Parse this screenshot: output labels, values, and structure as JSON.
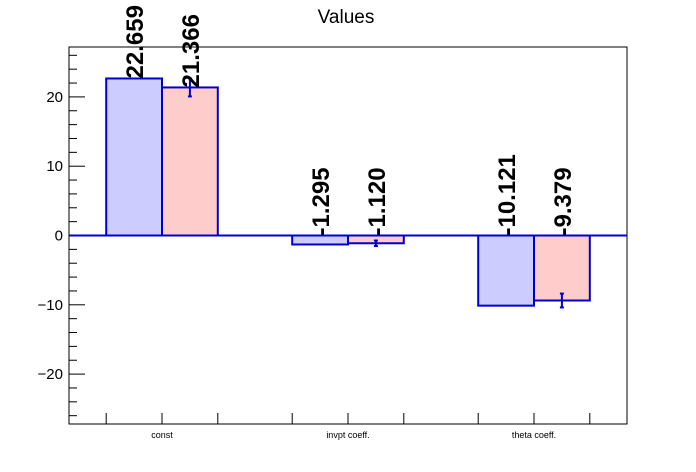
{
  "chart_data": {
    "type": "bar",
    "title": "Values",
    "categories": [
      "const",
      "invpt coeff.",
      "theta coeff."
    ],
    "series": [
      {
        "values": [
          22.659,
          -1.295,
          -10.121
        ],
        "color": "#ccccff",
        "edge": "#0000cc",
        "labels": [
          "22.659",
          "-1.295",
          "-10.121"
        ]
      },
      {
        "values": [
          21.366,
          -1.12,
          -9.379
        ],
        "errors": [
          1.3,
          0.4,
          1.0
        ],
        "color": "#ffcccc",
        "edge": "#0000cc",
        "labels": [
          "21.366",
          "-1.120",
          "-9.379"
        ]
      }
    ],
    "ylim": [
      -27.2,
      27.2
    ],
    "yticks": [
      -20,
      -10,
      0,
      10,
      20
    ],
    "ytick_labels": [
      "−20",
      "−10",
      "0",
      "10",
      "20"
    ],
    "xlabel": "",
    "ylabel": "",
    "grid": false,
    "zero_line_color": "#0000cc"
  }
}
